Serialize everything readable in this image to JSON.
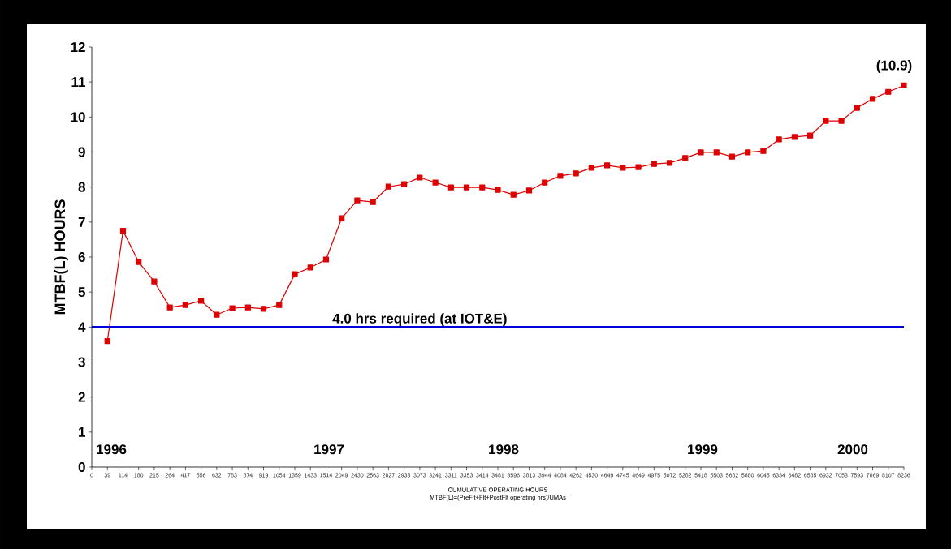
{
  "chart_data": {
    "type": "line",
    "ylabel": "MTBF(L) HOURS",
    "xlabel": "CUMULATIVE OPERATING HOURS",
    "categories": [
      "0",
      "39",
      "114",
      "180",
      "215",
      "264",
      "417",
      "556",
      "632",
      "783",
      "874",
      "919",
      "1054",
      "1359",
      "1433",
      "1514",
      "2049",
      "2430",
      "2563",
      "2827",
      "2933",
      "3073",
      "3241",
      "3311",
      "3353",
      "3414",
      "3481",
      "3596",
      "3813",
      "3944",
      "4084",
      "4262",
      "4530",
      "4649",
      "4745",
      "4649",
      "4975",
      "5072",
      "5282",
      "5418",
      "5503",
      "5682",
      "5880",
      "6045",
      "6334",
      "6482",
      "6585",
      "6932",
      "7053",
      "7593",
      "7869",
      "8107",
      "8236"
    ],
    "series": [
      {
        "color": "#dd0000",
        "values": [
          null,
          3.6,
          6.75,
          5.86,
          5.3,
          4.56,
          4.63,
          4.75,
          4.35,
          4.54,
          4.56,
          4.52,
          4.63,
          5.51,
          5.7,
          5.93,
          7.11,
          7.62,
          7.57,
          8.01,
          8.08,
          8.27,
          8.13,
          7.99,
          7.99,
          7.99,
          7.92,
          7.78,
          7.9,
          8.13,
          8.32,
          8.39,
          8.55,
          8.62,
          8.55,
          8.57,
          8.66,
          8.69,
          8.83,
          8.99,
          8.99,
          8.87,
          8.99,
          9.03,
          9.36,
          9.43,
          9.47,
          9.89,
          9.89,
          10.26,
          10.52,
          10.72,
          10.9
        ]
      }
    ],
    "ylim": [
      0,
      12
    ],
    "yticks": [
      0,
      1,
      2,
      3,
      4,
      5,
      6,
      7,
      8,
      9,
      10,
      11,
      12
    ],
    "ref_lines": [
      {
        "axis": "y",
        "value": 4,
        "label": "4.0 hrs required (at IOT&E)",
        "color": "#0000dd"
      }
    ],
    "annotations": [
      {
        "text": "(10.9)",
        "x": "8236",
        "y": 10.9
      },
      "1996",
      "1997",
      "1998",
      "1999",
      "2000",
      "MTBF(L)=(PreFlt+Flt+PostFlt operating hrs)/UMAs"
    ],
    "marker": "square",
    "line_style": "solid"
  }
}
